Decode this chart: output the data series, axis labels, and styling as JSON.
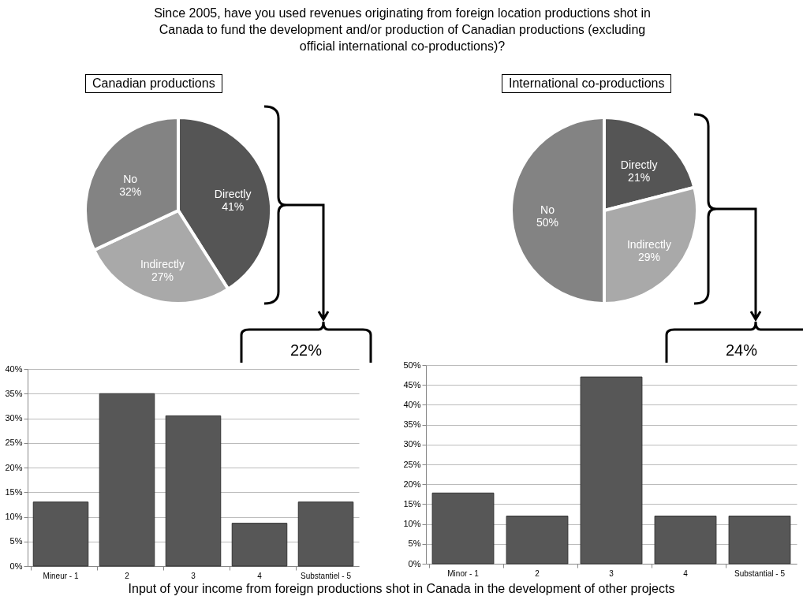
{
  "chart_data": [
    {
      "type": "pie",
      "title": "Since 2005, have you used revenues originating from foreign location productions shot in Canada to fund the development and/or production of Canadian productions (excluding official international co-productions)?",
      "subtitle": "Canadian productions",
      "categories": [
        "Directly",
        "Indirectly",
        "No"
      ],
      "values": [
        41,
        27,
        32
      ],
      "value_labels": [
        "41%",
        "27%",
        "32%"
      ],
      "colors": [
        "#555555",
        "#a9a9a9",
        "#838383"
      ]
    },
    {
      "type": "pie",
      "title": "International co-productions",
      "categories": [
        "Directly",
        "Indirectly",
        "No"
      ],
      "values": [
        21,
        29,
        50
      ],
      "value_labels": [
        "21%",
        "29%",
        "50%"
      ],
      "colors": [
        "#555555",
        "#a9a9a9",
        "#838383"
      ]
    },
    {
      "type": "bar",
      "categories": [
        "Mineur - 1",
        "2",
        "3",
        "4",
        "Substantiel - 5"
      ],
      "values": [
        13,
        35,
        30.5,
        8.7,
        13
      ],
      "color": "#575757",
      "ylim": [
        0,
        40
      ],
      "yticks": [
        {
          "value": 0,
          "label": "0%"
        },
        {
          "value": 5,
          "label": "5%"
        },
        {
          "value": 10,
          "label": "10%"
        },
        {
          "value": 15,
          "label": "15%"
        },
        {
          "value": 20,
          "label": "20%"
        },
        {
          "value": 25,
          "label": "25%"
        },
        {
          "value": 30,
          "label": "30%"
        },
        {
          "value": 35,
          "label": "35%"
        },
        {
          "value": 40,
          "label": "40%"
        }
      ],
      "grid": "y",
      "annotations": [
        "22%"
      ],
      "xlabel": "Input of your income from foreign productions shot in Canada in the development of other projects"
    },
    {
      "type": "bar",
      "categories": [
        "Minor - 1",
        "2",
        "3",
        "4",
        "Substantial - 5"
      ],
      "values": [
        17.8,
        12,
        47,
        12,
        12
      ],
      "color": "#575757",
      "ylim": [
        0,
        50
      ],
      "yticks": [
        {
          "value": 0,
          "label": "0%"
        },
        {
          "value": 5,
          "label": "5%"
        },
        {
          "value": 10,
          "label": "10%"
        },
        {
          "value": 15,
          "label": "15%"
        },
        {
          "value": 20,
          "label": "20%"
        },
        {
          "value": 25,
          "label": "25%"
        },
        {
          "value": 30,
          "label": "30%"
        },
        {
          "value": 35,
          "label": "35%"
        },
        {
          "value": 40,
          "label": "40%"
        },
        {
          "value": 45,
          "label": "45%"
        },
        {
          "value": 50,
          "label": "50%"
        }
      ],
      "grid": "y",
      "annotations": [
        "24%"
      ]
    }
  ]
}
